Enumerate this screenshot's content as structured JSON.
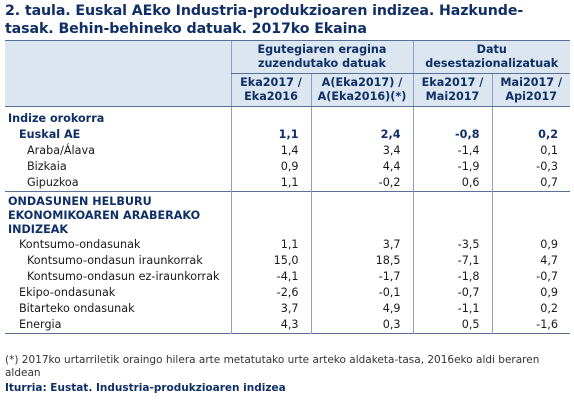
{
  "title": "2. taula. Euskal AEko Industria-produkzioaren indizea. Hazkunde-tasak. Behin-behineko datuak. 2017ko Ekaina",
  "header": {
    "group1": "Egutegiaren eragina zuzendutako datuak",
    "group2": "Datu desestazionalizatuak",
    "col1": "Eka2017 / Eka2016",
    "col2": "A(Eka2017) / A(Eka2016)(*)",
    "col3": "Eka2017 / Mai2017",
    "col4": "Mai2017 / Api2017"
  },
  "sections": {
    "s1": "Indize orokorra",
    "s2": "ONDASUNEN HELBURU EKONOMIKOAREN ARABERAKO INDIZEAK"
  },
  "rows": [
    {
      "label": "Euskal AE",
      "v1": "1,1",
      "v2": "2,4",
      "v3": "-0,8",
      "v4": "0,2"
    },
    {
      "label": "Araba/Álava",
      "v1": "1,4",
      "v2": "3,4",
      "v3": "-1,4",
      "v4": "0,1"
    },
    {
      "label": "Bizkaia",
      "v1": "0,9",
      "v2": "4,4",
      "v3": "-1,9",
      "v4": "-0,3"
    },
    {
      "label": "Gipuzkoa",
      "v1": "1,1",
      "v2": "-0,2",
      "v3": "0,6",
      "v4": "0,7"
    },
    {
      "label": "Kontsumo-ondasunak",
      "v1": "1,1",
      "v2": "3,7",
      "v3": "-3,5",
      "v4": "0,9"
    },
    {
      "label": "Kontsumo-ondasun iraunkorrak",
      "v1": "15,0",
      "v2": "18,5",
      "v3": "-7,1",
      "v4": "4,7"
    },
    {
      "label": "Kontsumo-ondasun ez-iraunkorrak",
      "v1": "-4,1",
      "v2": "-1,7",
      "v3": "-1,8",
      "v4": "-0,7"
    },
    {
      "label": "Ekipo-ondasunak",
      "v1": "-2,6",
      "v2": "-0,1",
      "v3": "-0,7",
      "v4": "0,9"
    },
    {
      "label": "Bitarteko ondasunak",
      "v1": "3,7",
      "v2": "4,9",
      "v3": "-1,1",
      "v4": "0,2"
    },
    {
      "label": "Energia",
      "v1": "4,3",
      "v2": "0,3",
      "v3": "0,5",
      "v4": "-1,6"
    }
  ],
  "footnote": "(*) 2017ko urtarriletik oraingo hilera arte metatutako urte arteko aldaketa-tasa, 2016eko aldi beraren aldean",
  "source": "Iturria: Eustat. Industria-produkzioaren indizea"
}
